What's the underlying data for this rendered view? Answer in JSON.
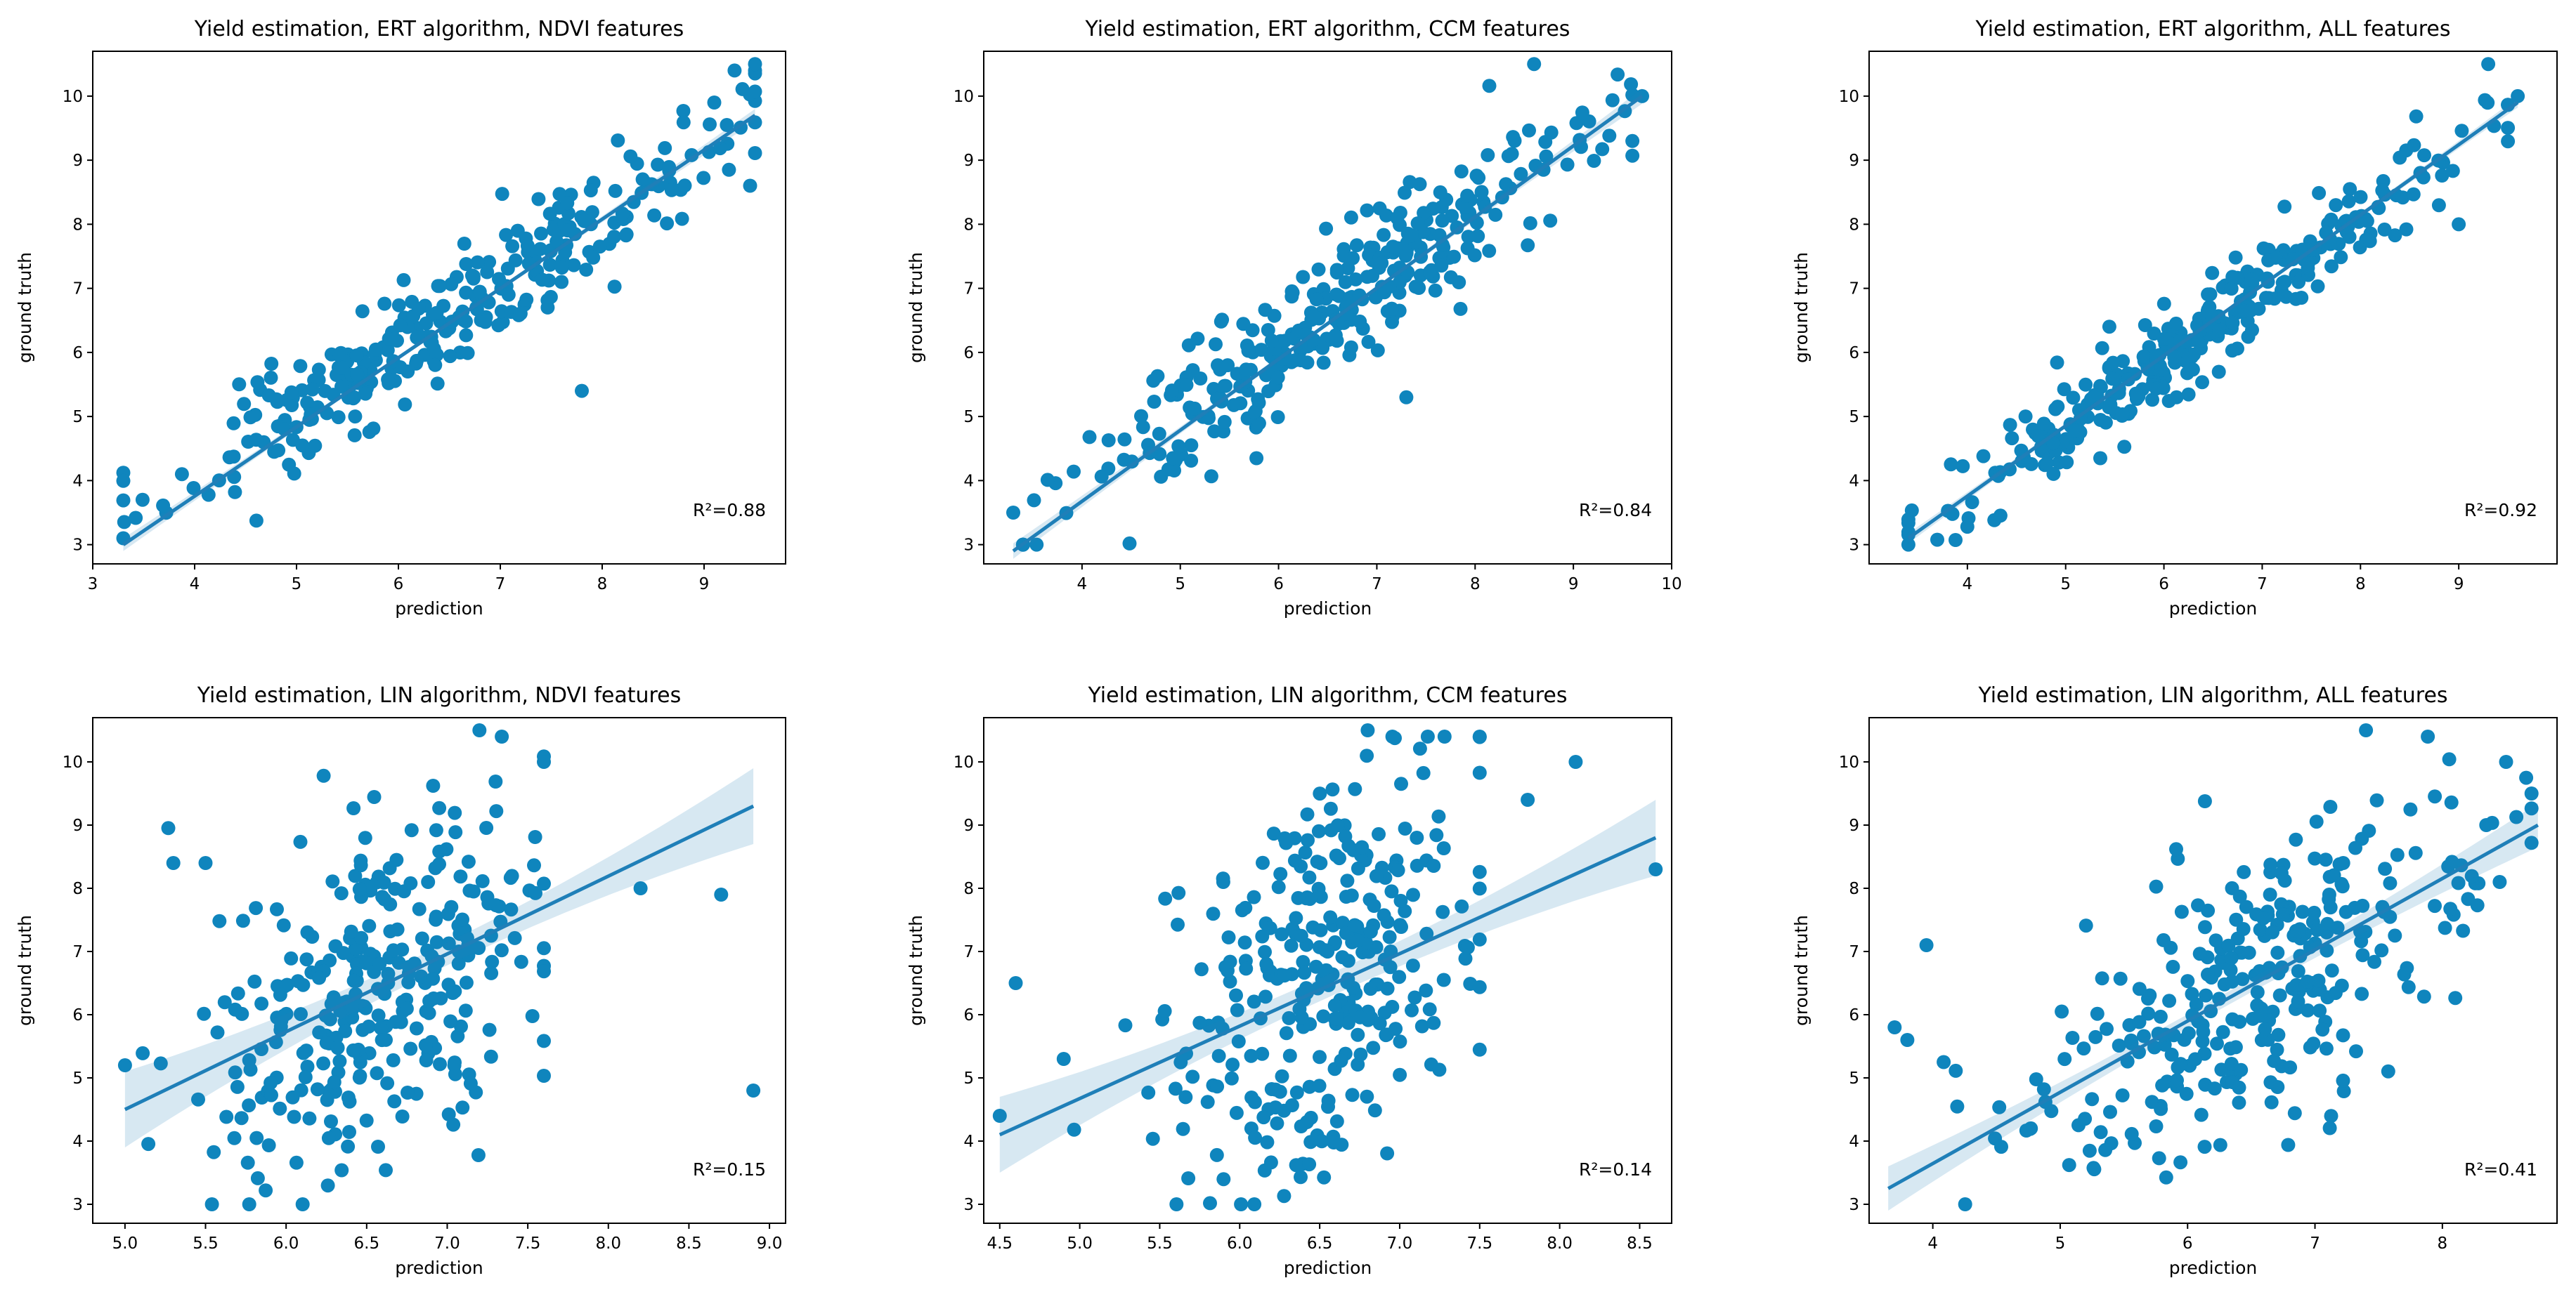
{
  "chart_data": [
    {
      "type": "scatter",
      "title": "Yield estimation, ERT algorithm, NDVI features",
      "xlabel": "prediction",
      "ylabel": "ground truth",
      "xlim": [
        3.0,
        9.8
      ],
      "ylim": [
        2.7,
        10.7
      ],
      "xticks": [
        "3",
        "4",
        "5",
        "6",
        "7",
        "8",
        "9"
      ],
      "yticks": [
        "3",
        "4",
        "5",
        "6",
        "7",
        "8",
        "9",
        "10"
      ],
      "r2_text": "R²=0.88",
      "fit": {
        "x1": 3.3,
        "y1": 3.0,
        "x2": 9.5,
        "y2": 9.7
      },
      "ci": 0.1,
      "gen": {
        "n": 310,
        "xmean": 6.5,
        "xsd": 1.35,
        "xmin": 3.3,
        "xmax": 9.5,
        "slope": 1.0,
        "intercept": 0.05,
        "noise": 0.45,
        "seed": 11
      },
      "notable_points": [
        {
          "x": 9.5,
          "y": 10.5
        },
        {
          "x": 7.8,
          "y": 5.4
        },
        {
          "x": 3.3,
          "y": 3.1
        },
        {
          "x": 9.1,
          "y": 9.9
        }
      ]
    },
    {
      "type": "scatter",
      "title": "Yield estimation, ERT algorithm, CCM features",
      "xlabel": "prediction",
      "ylabel": "ground truth",
      "xlim": [
        3.0,
        10.0
      ],
      "ylim": [
        2.7,
        10.7
      ],
      "xticks": [
        "4",
        "5",
        "6",
        "7",
        "8",
        "9",
        "10"
      ],
      "yticks": [
        "3",
        "4",
        "5",
        "6",
        "7",
        "8",
        "9",
        "10"
      ],
      "r2_text": "R²=0.84",
      "fit": {
        "x1": 3.3,
        "y1": 2.9,
        "x2": 9.7,
        "y2": 10.0
      },
      "ci": 0.12,
      "gen": {
        "n": 310,
        "xmean": 6.5,
        "xsd": 1.3,
        "xmin": 3.4,
        "xmax": 9.6,
        "slope": 1.1,
        "intercept": -0.6,
        "noise": 0.55,
        "seed": 23
      },
      "notable_points": [
        {
          "x": 8.6,
          "y": 10.5
        },
        {
          "x": 9.7,
          "y": 10.0
        },
        {
          "x": 3.3,
          "y": 3.5
        },
        {
          "x": 7.3,
          "y": 5.3
        }
      ]
    },
    {
      "type": "scatter",
      "title": "Yield estimation, ERT algorithm, ALL features",
      "xlabel": "prediction",
      "ylabel": "ground truth",
      "xlim": [
        3.0,
        10.0
      ],
      "ylim": [
        2.7,
        10.7
      ],
      "xticks": [
        "4",
        "5",
        "6",
        "7",
        "8",
        "9"
      ],
      "yticks": [
        "3",
        "4",
        "5",
        "6",
        "7",
        "8",
        "9",
        "10"
      ],
      "r2_text": "R²=0.92",
      "fit": {
        "x1": 3.4,
        "y1": 3.1,
        "x2": 9.6,
        "y2": 9.9
      },
      "ci": 0.08,
      "gen": {
        "n": 310,
        "xmean": 6.5,
        "xsd": 1.35,
        "xmin": 3.4,
        "xmax": 9.5,
        "slope": 1.08,
        "intercept": -0.55,
        "noise": 0.35,
        "seed": 37
      },
      "notable_points": [
        {
          "x": 9.3,
          "y": 10.5
        },
        {
          "x": 9.0,
          "y": 8.0
        },
        {
          "x": 3.4,
          "y": 3.0
        },
        {
          "x": 9.6,
          "y": 10.0
        }
      ]
    },
    {
      "type": "scatter",
      "title": "Yield estimation, LIN algorithm, NDVI features",
      "xlabel": "prediction",
      "ylabel": "ground truth",
      "xlim": [
        4.8,
        9.1
      ],
      "ylim": [
        2.7,
        10.7
      ],
      "xticks": [
        "5.0",
        "5.5",
        "6.0",
        "6.5",
        "7.0",
        "7.5",
        "8.0",
        "8.5",
        "9.0"
      ],
      "yticks": [
        "3",
        "4",
        "5",
        "6",
        "7",
        "8",
        "9",
        "10"
      ],
      "r2_text": "R²=0.15",
      "fit": {
        "x1": 5.0,
        "y1": 4.5,
        "x2": 8.9,
        "y2": 9.3
      },
      "ci": 0.6,
      "gen": {
        "n": 310,
        "xmean": 6.55,
        "xsd": 0.5,
        "xmin": 5.0,
        "xmax": 7.6,
        "slope": 1.2,
        "intercept": -1.4,
        "noise": 1.45,
        "seed": 41
      },
      "notable_points": [
        {
          "x": 8.9,
          "y": 4.8
        },
        {
          "x": 8.7,
          "y": 7.9
        },
        {
          "x": 8.2,
          "y": 8.0
        },
        {
          "x": 7.6,
          "y": 10.0
        },
        {
          "x": 7.2,
          "y": 10.5
        },
        {
          "x": 5.0,
          "y": 5.2
        },
        {
          "x": 5.3,
          "y": 8.4
        },
        {
          "x": 5.5,
          "y": 8.4
        }
      ]
    },
    {
      "type": "scatter",
      "title": "Yield estimation, LIN algorithm, CCM features",
      "xlabel": "prediction",
      "ylabel": "ground truth",
      "xlim": [
        4.4,
        8.7
      ],
      "ylim": [
        2.7,
        10.7
      ],
      "xticks": [
        "4.5",
        "5.0",
        "5.5",
        "6.0",
        "6.5",
        "7.0",
        "7.5",
        "8.0",
        "8.5"
      ],
      "yticks": [
        "3",
        "4",
        "5",
        "6",
        "7",
        "8",
        "9",
        "10"
      ],
      "r2_text": "R²=0.14",
      "fit": {
        "x1": 4.5,
        "y1": 4.1,
        "x2": 8.6,
        "y2": 8.8
      },
      "ci": 0.6,
      "gen": {
        "n": 310,
        "xmean": 6.5,
        "xsd": 0.45,
        "xmin": 4.5,
        "xmax": 7.5,
        "slope": 1.15,
        "intercept": -0.9,
        "noise": 1.5,
        "seed": 53
      },
      "notable_points": [
        {
          "x": 4.5,
          "y": 4.4
        },
        {
          "x": 4.6,
          "y": 6.5
        },
        {
          "x": 8.6,
          "y": 8.3
        },
        {
          "x": 8.1,
          "y": 10.0
        },
        {
          "x": 7.8,
          "y": 9.4
        },
        {
          "x": 6.8,
          "y": 10.5
        },
        {
          "x": 4.9,
          "y": 5.3
        }
      ]
    },
    {
      "type": "scatter",
      "title": "Yield estimation, LIN algorithm, ALL features",
      "xlabel": "prediction",
      "ylabel": "ground truth",
      "xlim": [
        3.5,
        8.9
      ],
      "ylim": [
        2.7,
        10.7
      ],
      "xticks": [
        "4",
        "5",
        "6",
        "7",
        "8"
      ],
      "yticks": [
        "3",
        "4",
        "5",
        "6",
        "7",
        "8",
        "9",
        "10"
      ],
      "r2_text": "R²=0.41",
      "fit": {
        "x1": 3.65,
        "y1": 3.25,
        "x2": 8.75,
        "y2": 9.0
      },
      "ci": 0.35,
      "gen": {
        "n": 310,
        "xmean": 6.5,
        "xsd": 0.9,
        "xmin": 3.7,
        "xmax": 8.7,
        "slope": 1.13,
        "intercept": -0.9,
        "noise": 1.05,
        "seed": 67
      },
      "notable_points": [
        {
          "x": 3.7,
          "y": 5.8
        },
        {
          "x": 3.8,
          "y": 5.6
        },
        {
          "x": 3.95,
          "y": 7.1
        },
        {
          "x": 8.7,
          "y": 9.5
        },
        {
          "x": 8.5,
          "y": 10.0
        },
        {
          "x": 7.4,
          "y": 10.5
        },
        {
          "x": 8.45,
          "y": 8.1
        }
      ]
    }
  ]
}
